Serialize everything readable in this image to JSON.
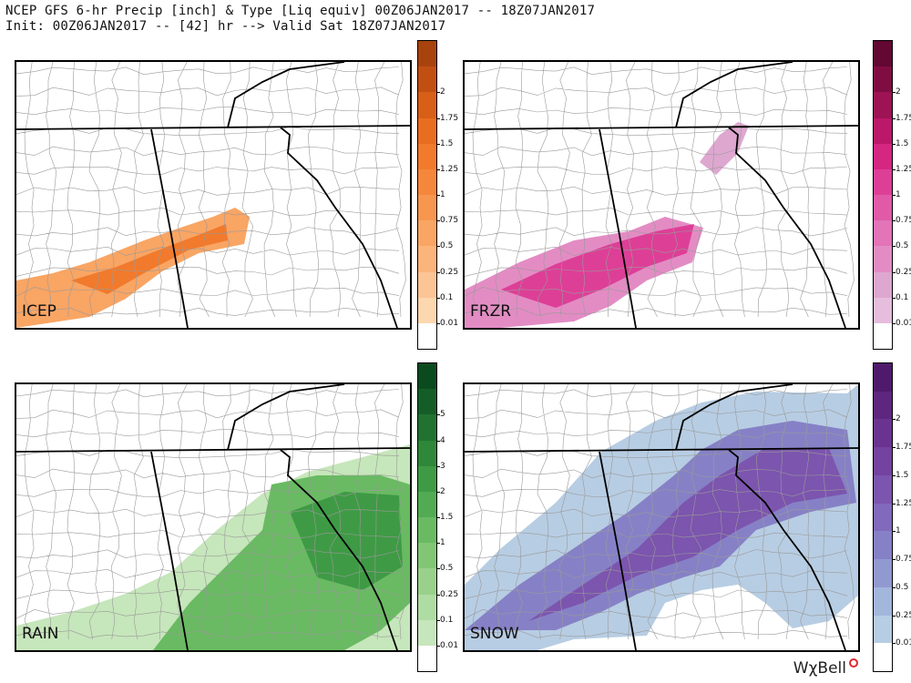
{
  "header": {
    "line1": "NCEP GFS 6-hr Precip [inch] & Type [Liq equiv] 00Z06JAN2017 -- 18Z07JAN2017",
    "line2": "Init: 00Z06JAN2017 -- [42] hr --> Valid Sat 18Z07JAN2017"
  },
  "panels": [
    {
      "label": "ICEP",
      "ticks": [
        "0.01",
        "0.1",
        "0.25",
        "0.5",
        "0.75",
        "1",
        "1.25",
        "1.5",
        "1.75",
        "2"
      ],
      "colors": [
        "#fdd7b0",
        "#fcc595",
        "#fbb57b",
        "#f9a564",
        "#f7964f",
        "#f5873c",
        "#f17a2c",
        "#e96d20",
        "#d75f18",
        "#c24f12",
        "#a8430e"
      ]
    },
    {
      "label": "FRZR",
      "ticks": [
        "0.01",
        "0.1",
        "0.25",
        "0.5",
        "0.75",
        "1",
        "1.25",
        "1.5",
        "1.75",
        "2"
      ],
      "colors": [
        "#e6bddc",
        "#dea7d0",
        "#e38cc4",
        "#e274b7",
        "#e05aa8",
        "#dd3f97",
        "#d52682",
        "#bb1869",
        "#9e1354",
        "#800d42",
        "#620833"
      ]
    },
    {
      "label": "RAIN",
      "ticks": [
        "0.01",
        "0.1",
        "0.25",
        "0.5",
        "1",
        "1.5",
        "2",
        "3",
        "4",
        "5"
      ],
      "colors": [
        "#c6e6bb",
        "#afdca3",
        "#99d18c",
        "#82c675",
        "#69ba62",
        "#52ab52",
        "#3f9a45",
        "#2f873a",
        "#217231",
        "#155d27",
        "#0b4a1e"
      ]
    },
    {
      "label": "SNOW",
      "ticks": [
        "0.01",
        "0.25",
        "0.5",
        "0.75",
        "1",
        "1.25",
        "1.5",
        "1.75",
        "2"
      ],
      "colors": [
        "#b7cde3",
        "#a3b6dc",
        "#9199d1",
        "#8681c6",
        "#8169bb",
        "#7c55ae",
        "#74429f",
        "#6a338f",
        "#5e267e",
        "#4f1a6b"
      ]
    }
  ],
  "logo": "WχBell"
}
